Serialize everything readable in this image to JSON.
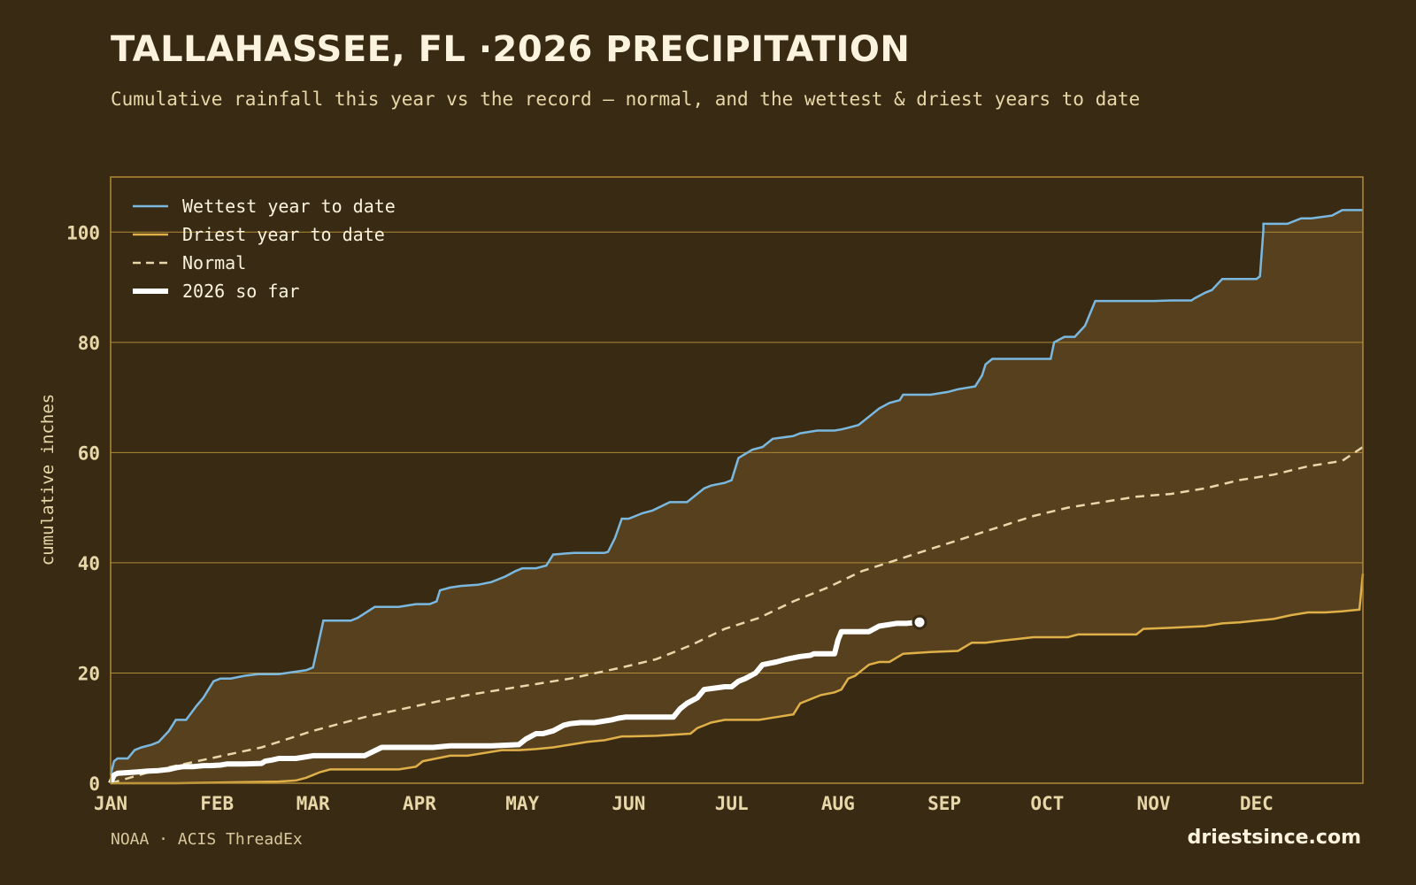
{
  "header": {
    "title": "TALLAHASSEE, FL ·2026 PRECIPITATION",
    "subtitle": "Cumulative rainfall this year vs the record — normal, and the wettest & driest years to date"
  },
  "footer": {
    "source": "NOAA · ACIS ThreadEx",
    "site": "driestsince.com"
  },
  "colors": {
    "background": "#392b13",
    "band_fill": "#56401e",
    "grid": "#b08a36",
    "wettest": "#7ab8e0",
    "driest": "#e0b048",
    "normal": "#e8d7a9",
    "current": "#ffffff",
    "tick_text": "#e8d7a9"
  },
  "chart_data": {
    "type": "line",
    "title": "TALLAHASSEE, FL ·2026 PRECIPITATION",
    "xlabel": "",
    "ylabel": "cumulative inches",
    "x_unit": "day of year",
    "xlim": [
      1,
      366
    ],
    "ylim": [
      0,
      110
    ],
    "yticks": [
      0,
      20,
      40,
      60,
      80,
      100
    ],
    "xticks": [
      {
        "label": "JAN",
        "day": 1
      },
      {
        "label": "FEB",
        "day": 32
      },
      {
        "label": "MAR",
        "day": 60
      },
      {
        "label": "APR",
        "day": 91
      },
      {
        "label": "MAY",
        "day": 121
      },
      {
        "label": "JUN",
        "day": 152
      },
      {
        "label": "JUL",
        "day": 182
      },
      {
        "label": "AUG",
        "day": 213
      },
      {
        "label": "SEP",
        "day": 244
      },
      {
        "label": "OCT",
        "day": 274
      },
      {
        "label": "NOV",
        "day": 305
      },
      {
        "label": "DEC",
        "day": 335
      }
    ],
    "grid": "horizontal",
    "legend_position": "top-left",
    "shaded_band": "between wettest and driest",
    "series": [
      {
        "name": "Wettest year to date",
        "style": "solid",
        "x": [
          1,
          2,
          3,
          6,
          8,
          10,
          13,
          15,
          18,
          20,
          23,
          26,
          28,
          31,
          33,
          36,
          40,
          44,
          50,
          58,
          60,
          63,
          65,
          68,
          71,
          73,
          78,
          80,
          85,
          90,
          94,
          96,
          97,
          100,
          103,
          108,
          112,
          116,
          119,
          121,
          125,
          128,
          130,
          136,
          145,
          146,
          148,
          150,
          152,
          156,
          159,
          164,
          166,
          169,
          174,
          176,
          180,
          182,
          184,
          188,
          191,
          194,
          200,
          202,
          207,
          212,
          214,
          216,
          219,
          223,
          225,
          228,
          231,
          232,
          237,
          240,
          245,
          248,
          253,
          255,
          256,
          258,
          275,
          276,
          279,
          282,
          285,
          287,
          288,
          294,
          300,
          305,
          310,
          316,
          317,
          320,
          322,
          325,
          328,
          335,
          336,
          337,
          337,
          340,
          344,
          348,
          351,
          357,
          360,
          364,
          366
        ],
        "y": [
          1.5,
          4.0,
          4.5,
          4.5,
          6.0,
          6.5,
          7.0,
          7.5,
          9.5,
          11.5,
          11.5,
          14.0,
          15.5,
          18.5,
          19.0,
          19.0,
          19.5,
          19.8,
          19.8,
          20.5,
          21.0,
          29.5,
          29.5,
          29.5,
          29.5,
          30.0,
          32.0,
          32.0,
          32.0,
          32.5,
          32.5,
          33.0,
          35.0,
          35.5,
          35.8,
          36.0,
          36.5,
          37.5,
          38.5,
          39.0,
          39.0,
          39.5,
          41.5,
          41.8,
          41.8,
          42.0,
          44.5,
          48.0,
          48.0,
          49.0,
          49.5,
          51.0,
          51.0,
          51.0,
          53.5,
          54.0,
          54.5,
          55.0,
          59.0,
          60.5,
          61.0,
          62.5,
          63.0,
          63.5,
          64.0,
          64.0,
          64.2,
          64.5,
          65.0,
          67.0,
          68.0,
          69.0,
          69.5,
          70.5,
          70.5,
          70.5,
          71.0,
          71.5,
          72.0,
          74.0,
          76.0,
          77.0,
          77.0,
          80.0,
          81.0,
          81.0,
          83.0,
          86.0,
          87.5,
          87.5,
          87.5,
          87.5,
          87.6,
          87.6,
          88.0,
          89.0,
          89.5,
          91.5,
          91.5,
          91.5,
          92.0,
          100.5,
          101.5,
          101.5,
          101.5,
          102.5,
          102.5,
          103.0,
          104.0,
          104.0,
          104.0
        ]
      },
      {
        "name": "Driest year to date",
        "style": "solid",
        "x": [
          1,
          20,
          30,
          40,
          50,
          55,
          58,
          60,
          62,
          65,
          70,
          80,
          85,
          90,
          92,
          96,
          100,
          105,
          110,
          115,
          120,
          125,
          130,
          135,
          140,
          145,
          150,
          152,
          160,
          170,
          172,
          174,
          176,
          180,
          185,
          190,
          195,
          200,
          202,
          204,
          206,
          208,
          212,
          214,
          216,
          218,
          220,
          222,
          225,
          228,
          232,
          240,
          248,
          252,
          256,
          260,
          270,
          280,
          283,
          290,
          300,
          302,
          310,
          320,
          325,
          330,
          335,
          340,
          345,
          350,
          355,
          360,
          365,
          366
        ],
        "y": [
          0,
          0,
          0.1,
          0.2,
          0.3,
          0.5,
          1.0,
          1.5,
          2.0,
          2.5,
          2.5,
          2.5,
          2.5,
          3.0,
          4.0,
          4.5,
          5.0,
          5.0,
          5.5,
          6.0,
          6.0,
          6.2,
          6.5,
          7.0,
          7.5,
          7.8,
          8.5,
          8.5,
          8.6,
          9.0,
          10.0,
          10.5,
          11.0,
          11.5,
          11.5,
          11.5,
          12.0,
          12.5,
          14.5,
          15.0,
          15.5,
          16.0,
          16.5,
          17.0,
          19.0,
          19.5,
          20.5,
          21.5,
          22.0,
          22.0,
          23.5,
          23.8,
          24.0,
          25.5,
          25.5,
          25.8,
          26.5,
          26.5,
          27.0,
          27.0,
          27.0,
          28.0,
          28.2,
          28.5,
          29.0,
          29.2,
          29.5,
          29.8,
          30.5,
          31.0,
          31.0,
          31.2,
          31.5,
          38.0
        ]
      },
      {
        "name": "Normal",
        "style": "dashed",
        "x": [
          1,
          15,
          30,
          45,
          60,
          75,
          90,
          105,
          120,
          135,
          150,
          160,
          170,
          180,
          190,
          200,
          210,
          220,
          230,
          240,
          250,
          260,
          270,
          280,
          290,
          300,
          310,
          320,
          330,
          340,
          350,
          360,
          366
        ],
        "y": [
          0,
          2.5,
          4.5,
          6.5,
          9.5,
          12.0,
          14.0,
          16.0,
          17.5,
          19.0,
          21.0,
          22.5,
          25.0,
          28.0,
          30.0,
          33.0,
          35.5,
          38.5,
          40.5,
          42.5,
          44.5,
          46.5,
          48.5,
          50.0,
          51.0,
          52.0,
          52.5,
          53.5,
          55.0,
          56.0,
          57.5,
          58.5,
          61.0
        ]
      },
      {
        "name": "2026 so far",
        "style": "thick",
        "x": [
          1,
          2,
          3,
          8,
          12,
          15,
          18,
          20,
          22,
          25,
          28,
          30,
          33,
          35,
          40,
          45,
          46,
          48,
          50,
          55,
          60,
          62,
          65,
          70,
          75,
          80,
          85,
          90,
          95,
          100,
          108,
          112,
          120,
          122,
          125,
          127,
          130,
          133,
          135,
          138,
          142,
          147,
          149,
          151,
          155,
          158,
          163,
          165,
          167,
          169,
          172,
          174,
          180,
          182,
          184,
          186,
          189,
          191,
          195,
          198,
          202,
          205,
          206,
          210,
          212,
          213,
          214,
          219,
          222,
          225,
          230,
          233,
          236
        ],
        "y": [
          0,
          1.5,
          1.8,
          2.0,
          2.2,
          2.3,
          2.5,
          2.8,
          3.0,
          3.0,
          3.2,
          3.2,
          3.3,
          3.5,
          3.5,
          3.6,
          4.0,
          4.2,
          4.5,
          4.5,
          5.0,
          5.0,
          5.0,
          5.0,
          5.0,
          6.5,
          6.5,
          6.5,
          6.5,
          6.8,
          6.8,
          6.8,
          7.0,
          8.0,
          9.0,
          9.0,
          9.5,
          10.5,
          10.8,
          11.0,
          11.0,
          11.5,
          11.8,
          12.0,
          12.0,
          12.0,
          12.0,
          12.0,
          13.5,
          14.5,
          15.5,
          17.0,
          17.5,
          17.5,
          18.5,
          19.0,
          20.0,
          21.5,
          22.0,
          22.5,
          23.0,
          23.2,
          23.5,
          23.5,
          23.5,
          26.0,
          27.5,
          27.5,
          27.5,
          28.5,
          29.0,
          29.0,
          29.2
        ]
      }
    ]
  }
}
